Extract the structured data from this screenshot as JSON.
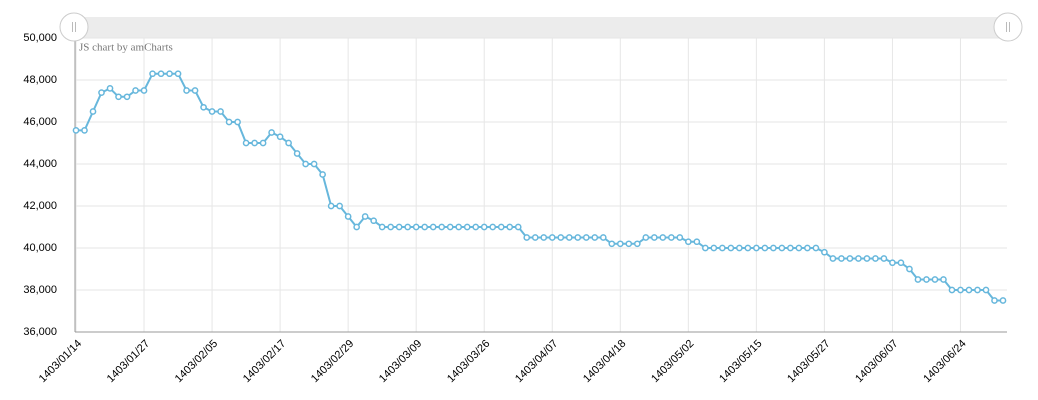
{
  "chart_data": {
    "type": "line",
    "credit": "JS chart by amCharts",
    "categories": [
      "1403/01/14",
      null,
      null,
      null,
      null,
      null,
      null,
      null,
      "1403/01/27",
      null,
      null,
      null,
      null,
      null,
      null,
      null,
      "1403/02/05",
      null,
      null,
      null,
      null,
      null,
      null,
      null,
      "1403/02/17",
      null,
      null,
      null,
      null,
      null,
      null,
      null,
      "1403/02/29",
      null,
      null,
      null,
      null,
      null,
      null,
      null,
      "1403/03/09",
      null,
      null,
      null,
      null,
      null,
      null,
      null,
      "1403/03/26",
      null,
      null,
      null,
      null,
      null,
      null,
      null,
      "1403/04/07",
      null,
      null,
      null,
      null,
      null,
      null,
      null,
      "1403/04/18",
      null,
      null,
      null,
      null,
      null,
      null,
      null,
      "1403/05/02",
      null,
      null,
      null,
      null,
      null,
      null,
      null,
      "1403/05/15",
      null,
      null,
      null,
      null,
      null,
      null,
      null,
      "1403/05/27",
      null,
      null,
      null,
      null,
      null,
      null,
      null,
      "1403/06/07",
      null,
      null,
      null,
      null,
      null,
      null,
      null,
      "1403/06/24",
      null,
      null,
      null,
      null,
      null
    ],
    "series": [
      {
        "color": "#67b7dc",
        "values": [
          45600,
          45600,
          46500,
          47400,
          47600,
          47200,
          47200,
          47500,
          47500,
          48300,
          48300,
          48300,
          48300,
          47500,
          47500,
          46700,
          46500,
          46500,
          46000,
          46000,
          45000,
          45000,
          45000,
          45500,
          45300,
          45000,
          44500,
          44000,
          44000,
          43500,
          42000,
          42000,
          41500,
          41000,
          41500,
          41300,
          41000,
          41000,
          41000,
          41000,
          41000,
          41000,
          41000,
          41000,
          41000,
          41000,
          41000,
          41000,
          41000,
          41000,
          41000,
          41000,
          41000,
          40500,
          40500,
          40500,
          40500,
          40500,
          40500,
          40500,
          40500,
          40500,
          40500,
          40200,
          40200,
          40200,
          40200,
          40500,
          40500,
          40500,
          40500,
          40500,
          40300,
          40300,
          40000,
          40000,
          40000,
          40000,
          40000,
          40000,
          40000,
          40000,
          40000,
          40000,
          40000,
          40000,
          40000,
          40000,
          39800,
          39500,
          39500,
          39500,
          39500,
          39500,
          39500,
          39500,
          39300,
          39300,
          39000,
          38500,
          38500,
          38500,
          38500,
          38000,
          38000,
          38000,
          38000,
          38000,
          37500,
          37500
        ]
      }
    ],
    "ylim": [
      36000,
      50000
    ],
    "yticks": [
      {
        "value": 36000,
        "label": "36,000"
      },
      {
        "value": 38000,
        "label": "38,000"
      },
      {
        "value": 40000,
        "label": "40,000"
      },
      {
        "value": 42000,
        "label": "42,000"
      },
      {
        "value": 44000,
        "label": "44,000"
      },
      {
        "value": 46000,
        "label": "46,000"
      },
      {
        "value": 48000,
        "label": "48,000"
      },
      {
        "value": 50000,
        "label": "50,000"
      }
    ],
    "grid": true
  }
}
